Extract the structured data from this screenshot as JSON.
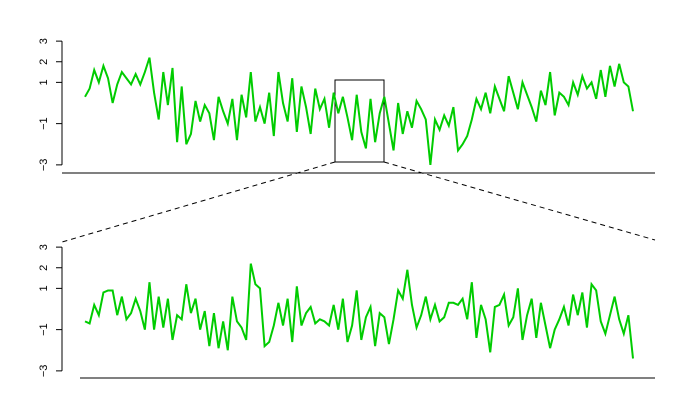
{
  "chart_data": [
    {
      "type": "line",
      "color": "#00cc00",
      "ylim": [
        -3.2,
        3.2
      ],
      "yticks": [
        {
          "value": -3,
          "label": "−3"
        },
        {
          "value": -1,
          "label": "−1"
        },
        1,
        2,
        3
      ],
      "values": [
        0.3,
        0.7,
        1.6,
        1.0,
        1.8,
        1.2,
        0.0,
        0.9,
        1.5,
        1.2,
        0.9,
        1.4,
        0.9,
        1.5,
        2.2,
        0.5,
        -0.8,
        1.5,
        -0.1,
        1.7,
        -1.9,
        0.8,
        -2.0,
        -1.5,
        0.1,
        -0.9,
        -0.1,
        -0.5,
        -1.8,
        0.3,
        -0.4,
        -1.0,
        0.2,
        -1.8,
        0.4,
        -0.7,
        1.5,
        -0.9,
        -0.2,
        -1.0,
        0.5,
        -1.6,
        1.5,
        0.0,
        -0.9,
        1.2,
        -1.4,
        0.8,
        -0.2,
        -1.5,
        0.7,
        -0.3,
        0.2,
        -1.2,
        0.5,
        -0.5,
        0.3,
        -0.7,
        -1.8,
        0.4,
        -1.4,
        -2.2,
        0.2,
        -1.9,
        -0.5,
        0.3,
        -1.0,
        -2.3,
        0.0,
        -1.5,
        -0.4,
        -1.2,
        0.1,
        -0.3,
        -0.8,
        -3.0,
        -0.8,
        -1.3,
        -0.6,
        -1.1,
        -0.2,
        -2.3,
        -2.0,
        -1.6,
        -0.8,
        0.2,
        -0.3,
        0.5,
        -0.5,
        0.8,
        0.2,
        -0.4,
        1.3,
        0.5,
        -0.3,
        1.0,
        0.4,
        -0.2,
        -0.9,
        0.6,
        -0.1,
        1.5,
        -0.6,
        0.5,
        0.3,
        -0.1,
        1.0,
        0.4,
        1.3,
        0.7,
        1.0,
        0.2,
        1.6,
        0.3,
        1.8,
        0.8,
        1.9,
        1.0,
        0.8,
        -0.4
      ]
    },
    {
      "type": "line",
      "color": "#00cc00",
      "ylim": [
        -3.2,
        3.2
      ],
      "yticks": [
        {
          "value": -3,
          "label": "−3"
        },
        {
          "value": -1,
          "label": "−1"
        },
        1,
        2,
        3
      ],
      "values": [
        -0.6,
        -0.7,
        0.2,
        -0.3,
        0.8,
        0.9,
        0.9,
        -0.3,
        0.6,
        -0.5,
        -0.2,
        0.5,
        -0.1,
        -1.0,
        1.3,
        -1.0,
        0.6,
        -0.9,
        0.5,
        -1.5,
        -0.3,
        -0.5,
        1.2,
        -0.2,
        0.5,
        -1.0,
        -0.1,
        -1.8,
        -0.2,
        -1.9,
        -0.6,
        -2.0,
        0.6,
        -0.6,
        -0.9,
        -1.5,
        2.2,
        1.2,
        1.0,
        -1.8,
        -1.6,
        -0.8,
        0.3,
        -0.8,
        0.5,
        -1.6,
        1.1,
        -0.8,
        -0.2,
        0.1,
        -0.7,
        -0.5,
        -0.6,
        -0.8,
        0.2,
        -1.0,
        0.5,
        -1.6,
        -0.8,
        0.9,
        -1.5,
        -0.4,
        0.1,
        -1.8,
        -0.2,
        -0.4,
        -1.7,
        -0.5,
        0.9,
        0.5,
        1.9,
        0.2,
        -0.9,
        -0.3,
        0.6,
        -0.5,
        0.2,
        -0.6,
        -0.4,
        0.3,
        0.3,
        0.2,
        0.5,
        -0.5,
        1.3,
        -1.4,
        0.2,
        -0.5,
        -2.1,
        0.1,
        0.2,
        0.7,
        -0.8,
        -0.4,
        1.0,
        -1.5,
        -0.3,
        0.5,
        -1.4,
        0.3,
        -0.8,
        -1.9,
        -1.0,
        -0.5,
        0.1,
        -0.8,
        0.7,
        -0.3,
        0.8,
        -0.9,
        1.2,
        0.9,
        -0.6,
        -1.2,
        -0.3,
        0.6,
        -0.5,
        -1.2,
        -0.3,
        -2.4
      ]
    }
  ]
}
